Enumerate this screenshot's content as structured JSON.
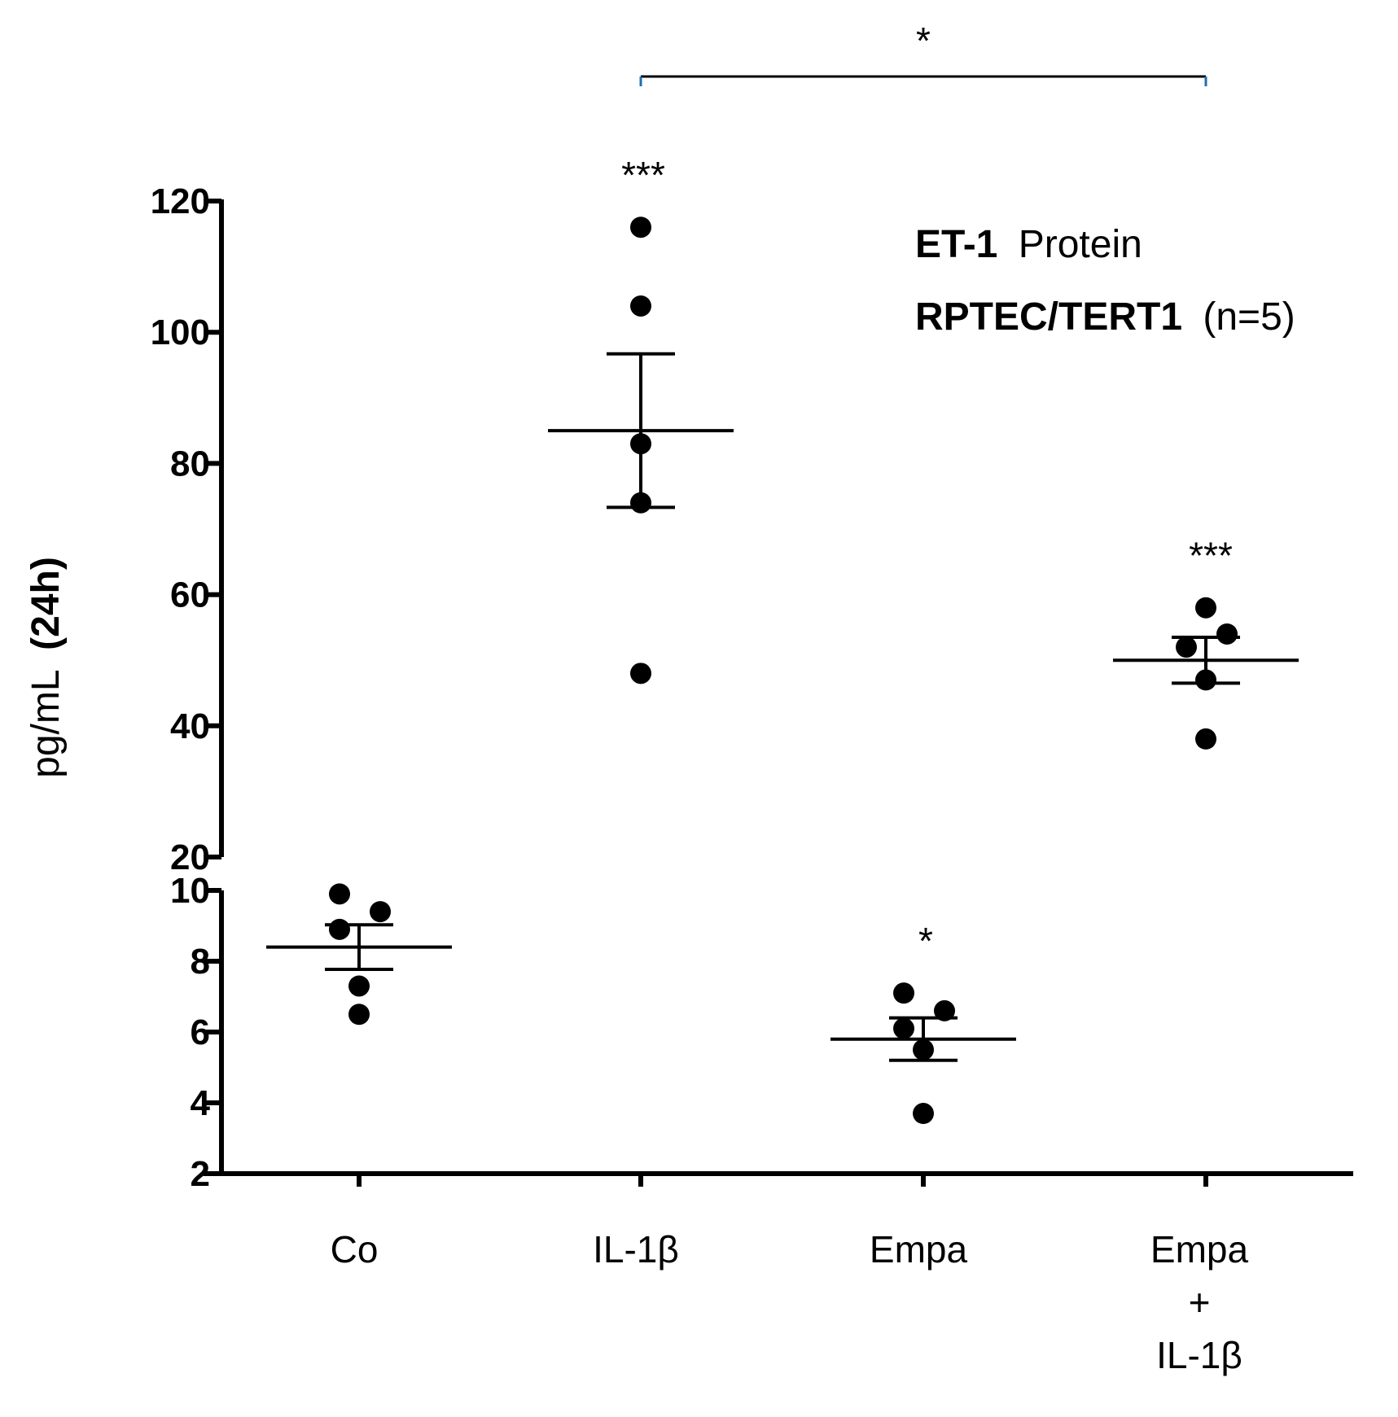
{
  "chart_data": {
    "type": "scatter",
    "title": "",
    "xlabel": "",
    "ylabel": {
      "unit": "pg/mL",
      "period": "(24h)"
    },
    "legend": {
      "line1": {
        "bold": "ET-1",
        "normal": "Protein"
      },
      "line2": {
        "bold": "RPTEC/TERT1",
        "normal": "(n=5)"
      },
      "placement": "top-right"
    },
    "y_axis_broken": true,
    "y_lower": {
      "range": [
        2,
        10
      ],
      "ticks": [
        "2",
        "4",
        "6",
        "8",
        "10"
      ]
    },
    "y_upper": {
      "range": [
        20,
        120
      ],
      "ticks": [
        "20",
        "40",
        "60",
        "80",
        "100",
        "120"
      ]
    },
    "categories": [
      {
        "lines": [
          "Co"
        ]
      },
      {
        "lines": [
          "IL-1β"
        ]
      },
      {
        "lines": [
          "Empa"
        ]
      },
      {
        "lines": [
          "Empa",
          "+",
          "IL-1β"
        ]
      }
    ],
    "groups": [
      {
        "name": "Co",
        "points": [
          9.9,
          9.4,
          8.9,
          7.3,
          6.5
        ],
        "mean": 8.4,
        "sem": 0.63,
        "significance": ""
      },
      {
        "name": "IL-1β",
        "points": [
          116,
          104,
          83,
          74,
          48
        ],
        "mean": 85,
        "sem": 11.7,
        "significance": "***"
      },
      {
        "name": "Empa",
        "points": [
          7.1,
          6.6,
          6.1,
          5.5,
          3.7
        ],
        "mean": 5.8,
        "sem": 0.6,
        "significance": "*"
      },
      {
        "name": "Empa + IL-1β",
        "points": [
          58,
          54,
          52,
          47,
          38
        ],
        "mean": 50,
        "sem": 3.5,
        "significance": "***"
      }
    ],
    "comparison": {
      "from": "IL-1β",
      "to": "Empa + IL-1β",
      "label": "*"
    },
    "colors": {
      "ink": "#000000",
      "bracket_tip": "#1f6fb2"
    }
  }
}
